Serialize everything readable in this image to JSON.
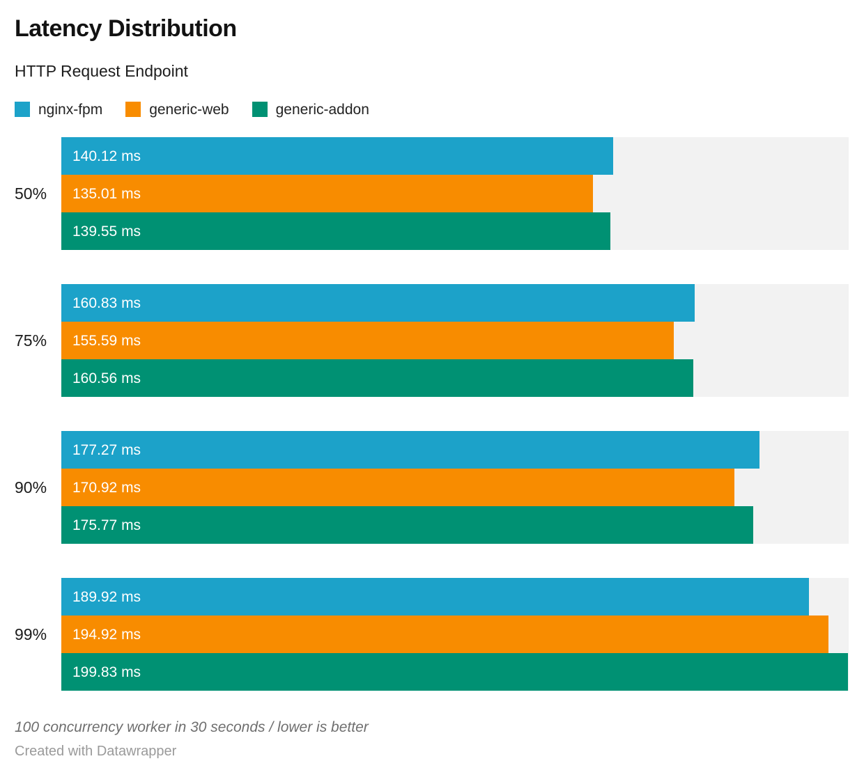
{
  "header": {
    "title": "Latency Distribution",
    "subtitle": "HTTP Request Endpoint"
  },
  "chart_data": {
    "type": "bar",
    "orientation": "horizontal",
    "title": "Latency Distribution",
    "subtitle": "HTTP Request Endpoint",
    "categories": [
      "50%",
      "75%",
      "90%",
      "99%"
    ],
    "series": [
      {
        "name": "nginx-fpm",
        "color": "#1CA2C9",
        "values": [
          140.12,
          160.83,
          177.27,
          189.92
        ]
      },
      {
        "name": "generic-web",
        "color": "#F88C00",
        "values": [
          135.01,
          155.59,
          170.92,
          194.92
        ]
      },
      {
        "name": "generic-addon",
        "color": "#009173",
        "values": [
          139.55,
          160.56,
          175.77,
          199.83
        ]
      }
    ],
    "xlim": [
      0,
      200
    ],
    "value_suffix": " ms",
    "value_labels_visible": true,
    "track_color": "#F2F2F2",
    "legend_position": "top",
    "grid": false,
    "xlabel": "",
    "ylabel": ""
  },
  "footer": {
    "note": "100 concurrency worker in 30 seconds / lower is better",
    "attribution": "Created with Datawrapper"
  }
}
